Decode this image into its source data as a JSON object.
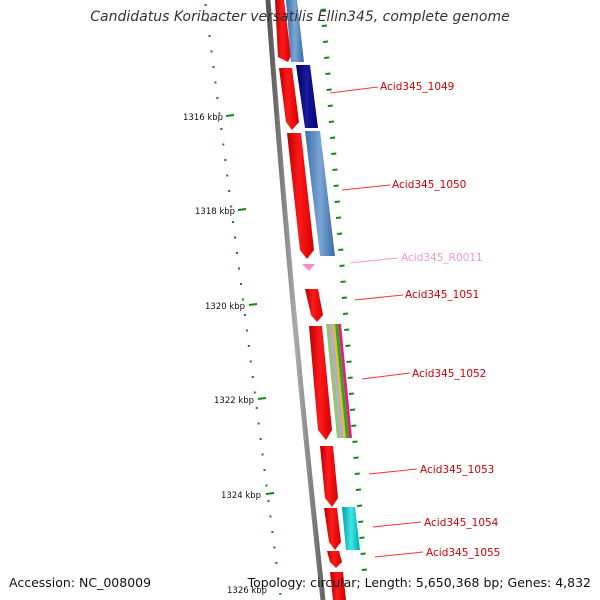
{
  "title": "Candidatus Koribacter versatilis Ellin345, complete genome",
  "footer": {
    "accession": "Accession: NC_008009",
    "summary": "Topology: circular; Length: 5,650,368 bp; Genes: 4,832"
  },
  "colors": {
    "forward_cds": "#ff0000",
    "reverse_cds": "#4f86c0",
    "reverse_cds_dark": "#0a0a80",
    "rna": "#ff88cc",
    "gc_ticks": "#118811",
    "backbone": "#808080",
    "cyan_feature": "#00c4c4"
  },
  "axis": {
    "ticks": [
      {
        "label": "1316 kbp"
      },
      {
        "label": "1318 kbp"
      },
      {
        "label": "1320 kbp"
      },
      {
        "label": "1322 kbp"
      },
      {
        "label": "1324 kbp"
      },
      {
        "label": "1326 kbp"
      }
    ]
  },
  "genes": [
    {
      "label": "Acid345_1049",
      "type": "cds"
    },
    {
      "label": "Acid345_1050",
      "type": "cds"
    },
    {
      "label": "Acid345_R0011",
      "type": "rna"
    },
    {
      "label": "Acid345_1051",
      "type": "cds"
    },
    {
      "label": "Acid345_1052",
      "type": "cds"
    },
    {
      "label": "Acid345_1053",
      "type": "cds"
    },
    {
      "label": "Acid345_1054",
      "type": "cds"
    },
    {
      "label": "Acid345_1055",
      "type": "cds"
    }
  ]
}
